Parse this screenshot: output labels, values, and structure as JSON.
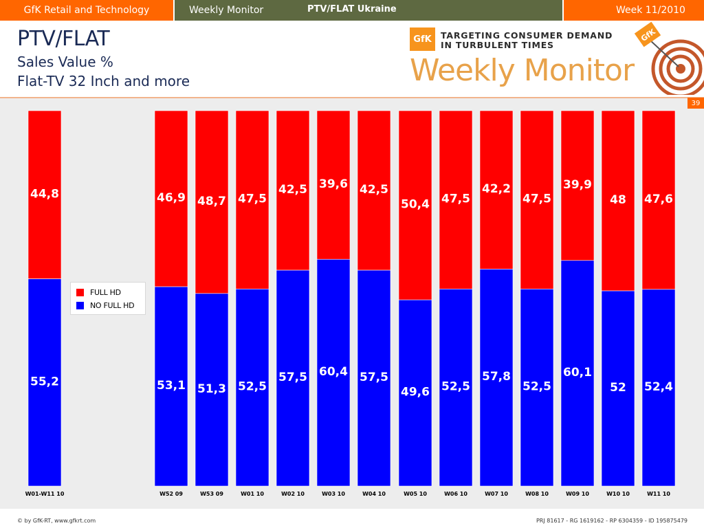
{
  "topbar": {
    "left": "GfK Retail and Technology",
    "monitor": "Weekly Monitor",
    "center": "PTV/FLAT Ukraine",
    "week": "Week 11/2010"
  },
  "header": {
    "title": "PTV/FLAT",
    "subtitle1": "Sales Value %",
    "subtitle2": "Flat-TV 32 Inch and more"
  },
  "logo": {
    "brand": "GfK",
    "tagline1": "TARGETING CONSUMER DEMAND",
    "tagline2": "IN TURBULENT TIMES",
    "wordmark": "Weekly Monitor",
    "target_label": "GfK"
  },
  "page_number": "39",
  "colors": {
    "full_hd": "#ff0000",
    "no_full_hd": "#0000ff",
    "accent_orange": "#ff6600",
    "bar_olive": "#5e6941"
  },
  "chart_data": {
    "type": "bar",
    "stacked": true,
    "percent": true,
    "categories": [
      "W01-W11 10",
      "W52 09",
      "W53 09",
      "W01 10",
      "W02 10",
      "W03 10",
      "W04 10",
      "W05 10",
      "W06 10",
      "W07 10",
      "W08 10",
      "W09 10",
      "W10 10",
      "W11 10"
    ],
    "series": [
      {
        "name": "NO FULL HD",
        "color": "#0000ff",
        "values": [
          55.2,
          53.1,
          51.3,
          52.5,
          57.5,
          60.4,
          57.5,
          49.6,
          52.5,
          57.8,
          52.5,
          60.1,
          52,
          52.4
        ]
      },
      {
        "name": "FULL HD",
        "color": "#ff0000",
        "values": [
          44.8,
          46.9,
          48.7,
          47.5,
          42.5,
          39.6,
          42.5,
          50.4,
          47.5,
          42.2,
          47.5,
          39.9,
          48,
          47.6
        ]
      }
    ],
    "labels": {
      "NO FULL HD": [
        "55,2",
        "53,1",
        "51,3",
        "52,5",
        "57,5",
        "60,4",
        "57,5",
        "49,6",
        "52,5",
        "57,8",
        "52,5",
        "60,1",
        "52",
        "52,4"
      ],
      "FULL HD": [
        "44,8",
        "46,9",
        "48,7",
        "47,5",
        "42,5",
        "39,6",
        "42,5",
        "50,4",
        "47,5",
        "42,2",
        "47,5",
        "39,9",
        "48",
        "47,6"
      ]
    },
    "legend": {
      "position": "left",
      "entries": [
        "FULL HD",
        "NO FULL HD"
      ]
    },
    "ylim": [
      0,
      100
    ],
    "grid": false
  },
  "footer": {
    "left": "© by GfK-RT, www.gfkrt.com",
    "right": "PRJ 81617 - RG 1619162 - RP 6304359 - ID 195875479"
  }
}
